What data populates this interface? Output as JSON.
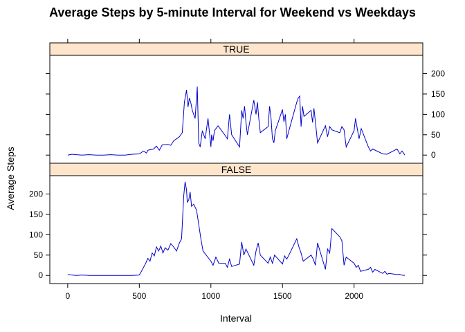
{
  "chart_data": {
    "type": "line",
    "title": "Average Steps by 5-minute Interval for Weekend vs Weekdays",
    "xlabel": "Interval",
    "ylabel": "Average Steps",
    "xlim": [
      -125,
      2480
    ],
    "ylim": [
      -20,
      245
    ],
    "x_ticks": [
      0,
      500,
      1000,
      1500,
      2000
    ],
    "y_ticks": [
      0,
      50,
      100,
      150,
      200
    ],
    "colors": {
      "line": "#0000cc",
      "strip": "#ffe5cc",
      "frame": "#000000"
    },
    "panels": [
      {
        "strip": "TRUE",
        "series": {
          "x": [
            0,
            30,
            60,
            100,
            150,
            200,
            250,
            300,
            350,
            400,
            450,
            500,
            530,
            550,
            560,
            600,
            620,
            640,
            660,
            700,
            720,
            740,
            760,
            780,
            800,
            815,
            830,
            840,
            850,
            860,
            870,
            880,
            890,
            905,
            915,
            925,
            940,
            960,
            980,
            1000,
            1005,
            1015,
            1025,
            1050,
            1100,
            1115,
            1130,
            1145,
            1200,
            1215,
            1225,
            1235,
            1245,
            1255,
            1300,
            1315,
            1325,
            1335,
            1345,
            1400,
            1410,
            1420,
            1430,
            1440,
            1450,
            1500,
            1510,
            1520,
            1530,
            1545,
            1600,
            1610,
            1620,
            1630,
            1640,
            1650,
            1700,
            1710,
            1720,
            1730,
            1745,
            1800,
            1815,
            1830,
            1845,
            1900,
            1915,
            1930,
            1945,
            2000,
            2010,
            2020,
            2035,
            2050,
            2100,
            2115,
            2130,
            2200,
            2230,
            2300,
            2320,
            2335,
            2355
          ],
          "y": [
            0,
            2,
            1,
            0,
            1,
            0,
            0,
            1,
            0,
            0,
            2,
            3,
            10,
            5,
            12,
            15,
            22,
            12,
            25,
            26,
            24,
            35,
            40,
            45,
            55,
            130,
            160,
            118,
            140,
            128,
            110,
            100,
            90,
            168,
            30,
            20,
            60,
            40,
            90,
            20,
            50,
            35,
            60,
            72,
            48,
            40,
            100,
            50,
            20,
            110,
            90,
            120,
            80,
            50,
            135,
            100,
            130,
            88,
            55,
            70,
            120,
            90,
            40,
            30,
            60,
            112,
            82,
            100,
            40,
            60,
            130,
            140,
            145,
            70,
            120,
            95,
            110,
            80,
            115,
            82,
            30,
            72,
            45,
            70,
            62,
            55,
            70,
            62,
            20,
            60,
            90,
            70,
            40,
            65,
            20,
            10,
            15,
            3,
            2,
            15,
            3,
            10,
            0
          ]
        }
      },
      {
        "strip": "FALSE",
        "series": {
          "x": [
            0,
            30,
            60,
            100,
            150,
            200,
            250,
            300,
            350,
            400,
            450,
            500,
            515,
            530,
            545,
            560,
            575,
            590,
            605,
            620,
            635,
            650,
            665,
            680,
            700,
            720,
            740,
            760,
            780,
            795,
            810,
            820,
            830,
            835,
            845,
            855,
            865,
            880,
            900,
            915,
            930,
            945,
            1000,
            1015,
            1035,
            1055,
            1100,
            1115,
            1130,
            1145,
            1200,
            1215,
            1230,
            1245,
            1300,
            1315,
            1330,
            1345,
            1400,
            1415,
            1430,
            1445,
            1500,
            1515,
            1530,
            1545,
            1600,
            1615,
            1630,
            1645,
            1700,
            1715,
            1730,
            1745,
            1800,
            1815,
            1830,
            1845,
            1900,
            1915,
            1930,
            1945,
            2000,
            2015,
            2030,
            2045,
            2100,
            2115,
            2130,
            2145,
            2200,
            2215,
            2230,
            2245,
            2300,
            2315,
            2330,
            2355
          ],
          "y": [
            2,
            1,
            0,
            1,
            0,
            0,
            0,
            0,
            0,
            0,
            0,
            1,
            10,
            20,
            30,
            42,
            35,
            55,
            48,
            70,
            60,
            72,
            55,
            68,
            62,
            78,
            70,
            60,
            80,
            90,
            195,
            230,
            210,
            180,
            185,
            205,
            170,
            175,
            160,
            125,
            90,
            60,
            35,
            25,
            45,
            30,
            30,
            20,
            40,
            22,
            28,
            82,
            50,
            65,
            25,
            60,
            80,
            50,
            30,
            45,
            30,
            50,
            28,
            48,
            40,
            50,
            90,
            70,
            55,
            35,
            50,
            40,
            25,
            80,
            15,
            65,
            55,
            115,
            95,
            85,
            25,
            45,
            30,
            20,
            25,
            10,
            15,
            20,
            8,
            15,
            5,
            10,
            3,
            5,
            2,
            3,
            1,
            0
          ]
        }
      }
    ]
  }
}
